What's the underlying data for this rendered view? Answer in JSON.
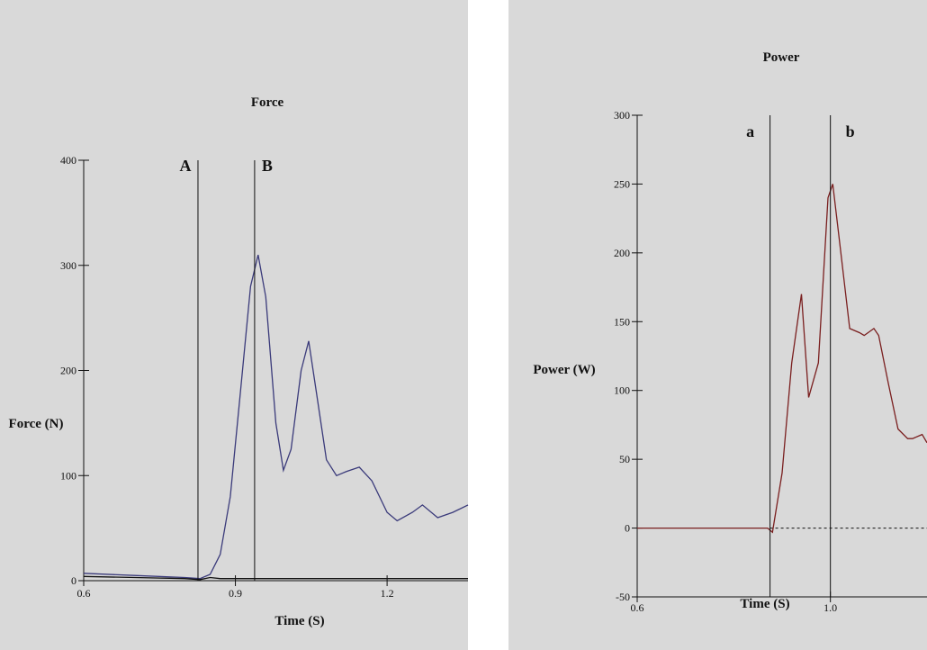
{
  "chart_data": [
    {
      "type": "line",
      "title": "Force",
      "xlabel": "Time (S)",
      "ylabel": "Force (N)",
      "xlim": [
        0.6,
        1.36
      ],
      "ylim": [
        0,
        400
      ],
      "xticks": [
        "0.6",
        "0.9",
        "1.2"
      ],
      "xtick_values": [
        0.6,
        0.9,
        1.2
      ],
      "yticks": [
        "0",
        "100",
        "200",
        "300",
        "400"
      ],
      "ytick_values": [
        0,
        100,
        200,
        300,
        400
      ],
      "markers": [
        {
          "label": "A",
          "x": 0.826
        },
        {
          "label": "B",
          "x": 0.938
        }
      ],
      "series": [
        {
          "color": "#3a3a7a",
          "x": [
            0.6,
            0.7,
            0.8,
            0.83,
            0.85,
            0.87,
            0.89,
            0.91,
            0.93,
            0.945,
            0.96,
            0.98,
            0.995,
            1.01,
            1.03,
            1.045,
            1.06,
            1.08,
            1.1,
            1.12,
            1.145,
            1.17,
            1.2,
            1.22,
            1.25,
            1.27,
            1.3,
            1.33,
            1.36
          ],
          "y": [
            7,
            5,
            3,
            2,
            6,
            25,
            80,
            180,
            280,
            310,
            270,
            150,
            105,
            125,
            200,
            228,
            180,
            115,
            100,
            104,
            108,
            95,
            65,
            57,
            65,
            72,
            60,
            65,
            72
          ]
        },
        {
          "color": "#111111",
          "x": [
            0.6,
            0.7,
            0.8,
            0.83,
            0.85,
            0.87,
            0.9,
            1.0,
            1.2,
            1.36
          ],
          "y": [
            4,
            3,
            2,
            1,
            3,
            2,
            2,
            2,
            2,
            2
          ]
        }
      ]
    },
    {
      "type": "line",
      "title": "Power",
      "xlabel": "Time (S)",
      "ylabel": "Power (W)",
      "xlim": [
        0.6,
        1.2
      ],
      "ylim": [
        -50,
        300
      ],
      "xticks": [
        "0.6",
        "1.0"
      ],
      "xtick_values": [
        0.6,
        1.0
      ],
      "yticks": [
        "-50",
        "0",
        "50",
        "100",
        "150",
        "200",
        "250",
        "300"
      ],
      "ytick_values": [
        -50,
        0,
        50,
        100,
        150,
        200,
        250,
        300
      ],
      "zero_line": "dashed",
      "markers": [
        {
          "label": "a",
          "x": 0.875
        },
        {
          "label": "b",
          "x": 1.0
        }
      ],
      "series": [
        {
          "color": "#7a1f1f",
          "x": [
            0.6,
            0.7,
            0.8,
            0.87,
            0.88,
            0.9,
            0.92,
            0.94,
            0.955,
            0.975,
            0.995,
            1.005,
            1.02,
            1.04,
            1.06,
            1.07,
            1.09,
            1.1,
            1.12,
            1.14,
            1.16,
            1.17,
            1.19,
            1.2
          ],
          "y": [
            0,
            0,
            0,
            0,
            -3,
            40,
            120,
            170,
            95,
            120,
            240,
            250,
            205,
            145,
            142,
            140,
            145,
            140,
            105,
            72,
            65,
            65,
            68,
            62
          ]
        }
      ]
    }
  ]
}
